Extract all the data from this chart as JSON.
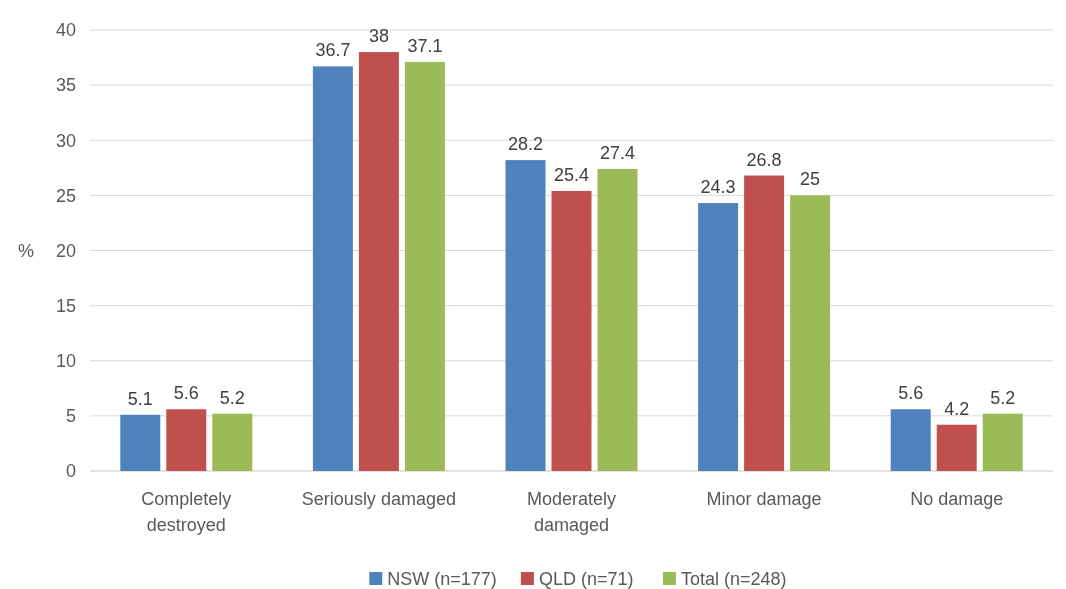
{
  "chart_data": {
    "type": "bar",
    "ylabel": "%",
    "categories": [
      "Completely destroyed",
      "Seriously damaged",
      "Moderately damaged",
      "Minor damage",
      "No damage"
    ],
    "series": [
      {
        "name": "NSW (n=177)",
        "color": "#4f81bd",
        "values": [
          5.1,
          36.7,
          28.2,
          24.3,
          5.6
        ]
      },
      {
        "name": "QLD (n=71)",
        "color": "#c0504d",
        "values": [
          5.6,
          38,
          25.4,
          26.8,
          4.2
        ]
      },
      {
        "name": "Total (n=248)",
        "color": "#9bbb59",
        "values": [
          5.2,
          37.1,
          27.4,
          25,
          5.2
        ]
      }
    ],
    "ylim": [
      0,
      40
    ],
    "yticks": [
      0,
      5,
      10,
      15,
      20,
      25,
      30,
      35,
      40
    ],
    "grid": "y",
    "data_labels": true,
    "legend": "bottom"
  }
}
